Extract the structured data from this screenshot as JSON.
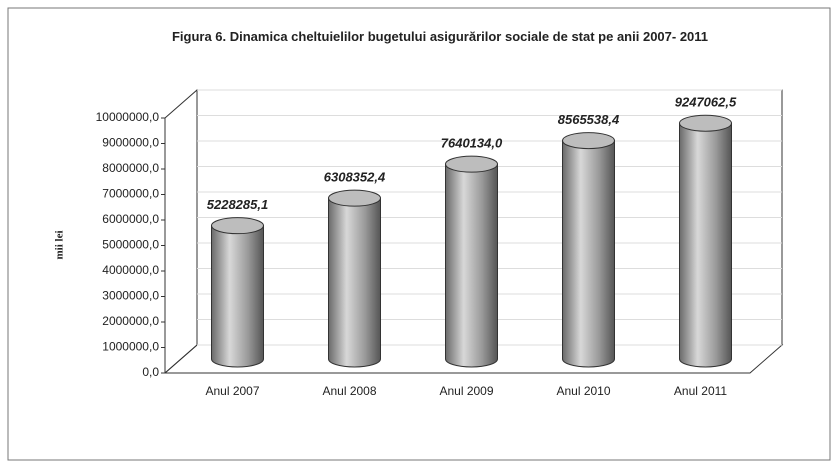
{
  "chart_data": {
    "type": "bar3d",
    "title": "Figura 6. Dinamica cheltuielilor bugetului asigurărilor sociale de stat pe anii 2007- 2011",
    "ylabel": "mii lei",
    "categories": [
      "Anul 2007",
      "Anul 2008",
      "Anul 2009",
      "Anul 2010",
      "Anul 2011"
    ],
    "values": [
      5228285.1,
      6308352.4,
      7640134.0,
      8565538.4,
      9247062.5
    ],
    "value_labels": [
      "5228285,1",
      "6308352,4",
      "7640134,0",
      "8565538,4",
      "9247062,5"
    ],
    "color": "#9a9a9a",
    "ylim": [
      0,
      10000000
    ],
    "yticks": [
      {
        "value": 0,
        "label": "0,0"
      },
      {
        "value": 1000000,
        "label": "1000000,0"
      },
      {
        "value": 2000000,
        "label": "2000000,0"
      },
      {
        "value": 3000000,
        "label": "3000000,0"
      },
      {
        "value": 4000000,
        "label": "4000000,0"
      },
      {
        "value": 5000000,
        "label": "5000000,0"
      },
      {
        "value": 6000000,
        "label": "6000000,0"
      },
      {
        "value": 7000000,
        "label": "7000000,0"
      },
      {
        "value": 8000000,
        "label": "8000000,0"
      },
      {
        "value": 9000000,
        "label": "9000000,0"
      },
      {
        "value": 10000000,
        "label": "10000000,0"
      }
    ],
    "grid": true
  }
}
